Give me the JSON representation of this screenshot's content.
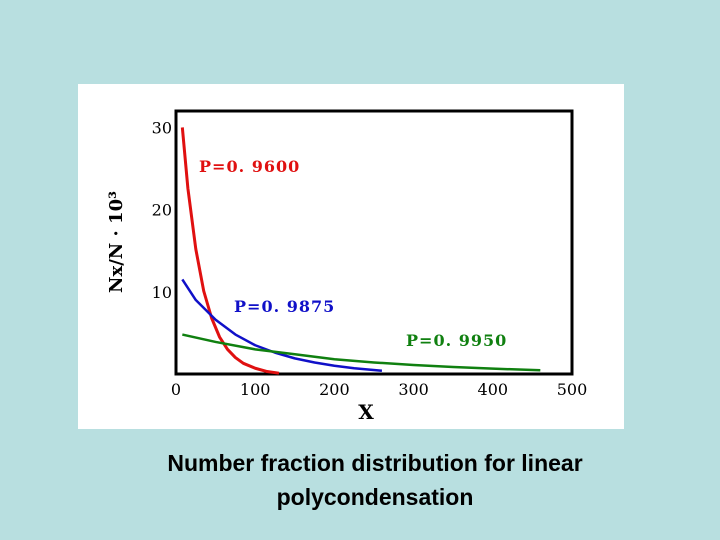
{
  "caption": {
    "line1": "Number fraction distribution for linear",
    "line2": "polycondensation"
  },
  "colors": {
    "background": "#b8dfe0",
    "panel": "#ffffff",
    "series": [
      "#e01010",
      "#1010c8",
      "#108010"
    ]
  },
  "chart_data": {
    "type": "line",
    "title": "",
    "xlabel": "X",
    "ylabel": "Nx/N · 10³",
    "xlim": [
      0,
      500
    ],
    "ylim": [
      0,
      32
    ],
    "xticks": [
      "0",
      "100",
      "200",
      "300",
      "400",
      "500"
    ],
    "yticks": [
      "10",
      "20",
      "30"
    ],
    "grid": false,
    "series": [
      {
        "name": "P=0. 9600",
        "x": [
          8,
          15,
          25,
          35,
          45,
          55,
          65,
          75,
          85,
          100,
          115,
          130
        ],
        "y": [
          30,
          22.6,
          15.2,
          10.1,
          6.8,
          4.5,
          3.0,
          2.0,
          1.3,
          0.7,
          0.3,
          0.1
        ]
      },
      {
        "name": "P=0. 9875",
        "x": [
          8,
          25,
          50,
          75,
          100,
          125,
          150,
          175,
          200,
          225,
          260
        ],
        "y": [
          11.5,
          9.0,
          6.6,
          4.8,
          3.5,
          2.6,
          1.9,
          1.4,
          1.0,
          0.7,
          0.4
        ]
      },
      {
        "name": "P=0. 9950",
        "x": [
          8,
          50,
          100,
          150,
          200,
          250,
          300,
          350,
          400,
          460
        ],
        "y": [
          4.8,
          3.9,
          3.0,
          2.4,
          1.8,
          1.4,
          1.1,
          0.85,
          0.65,
          0.45
        ]
      }
    ]
  }
}
